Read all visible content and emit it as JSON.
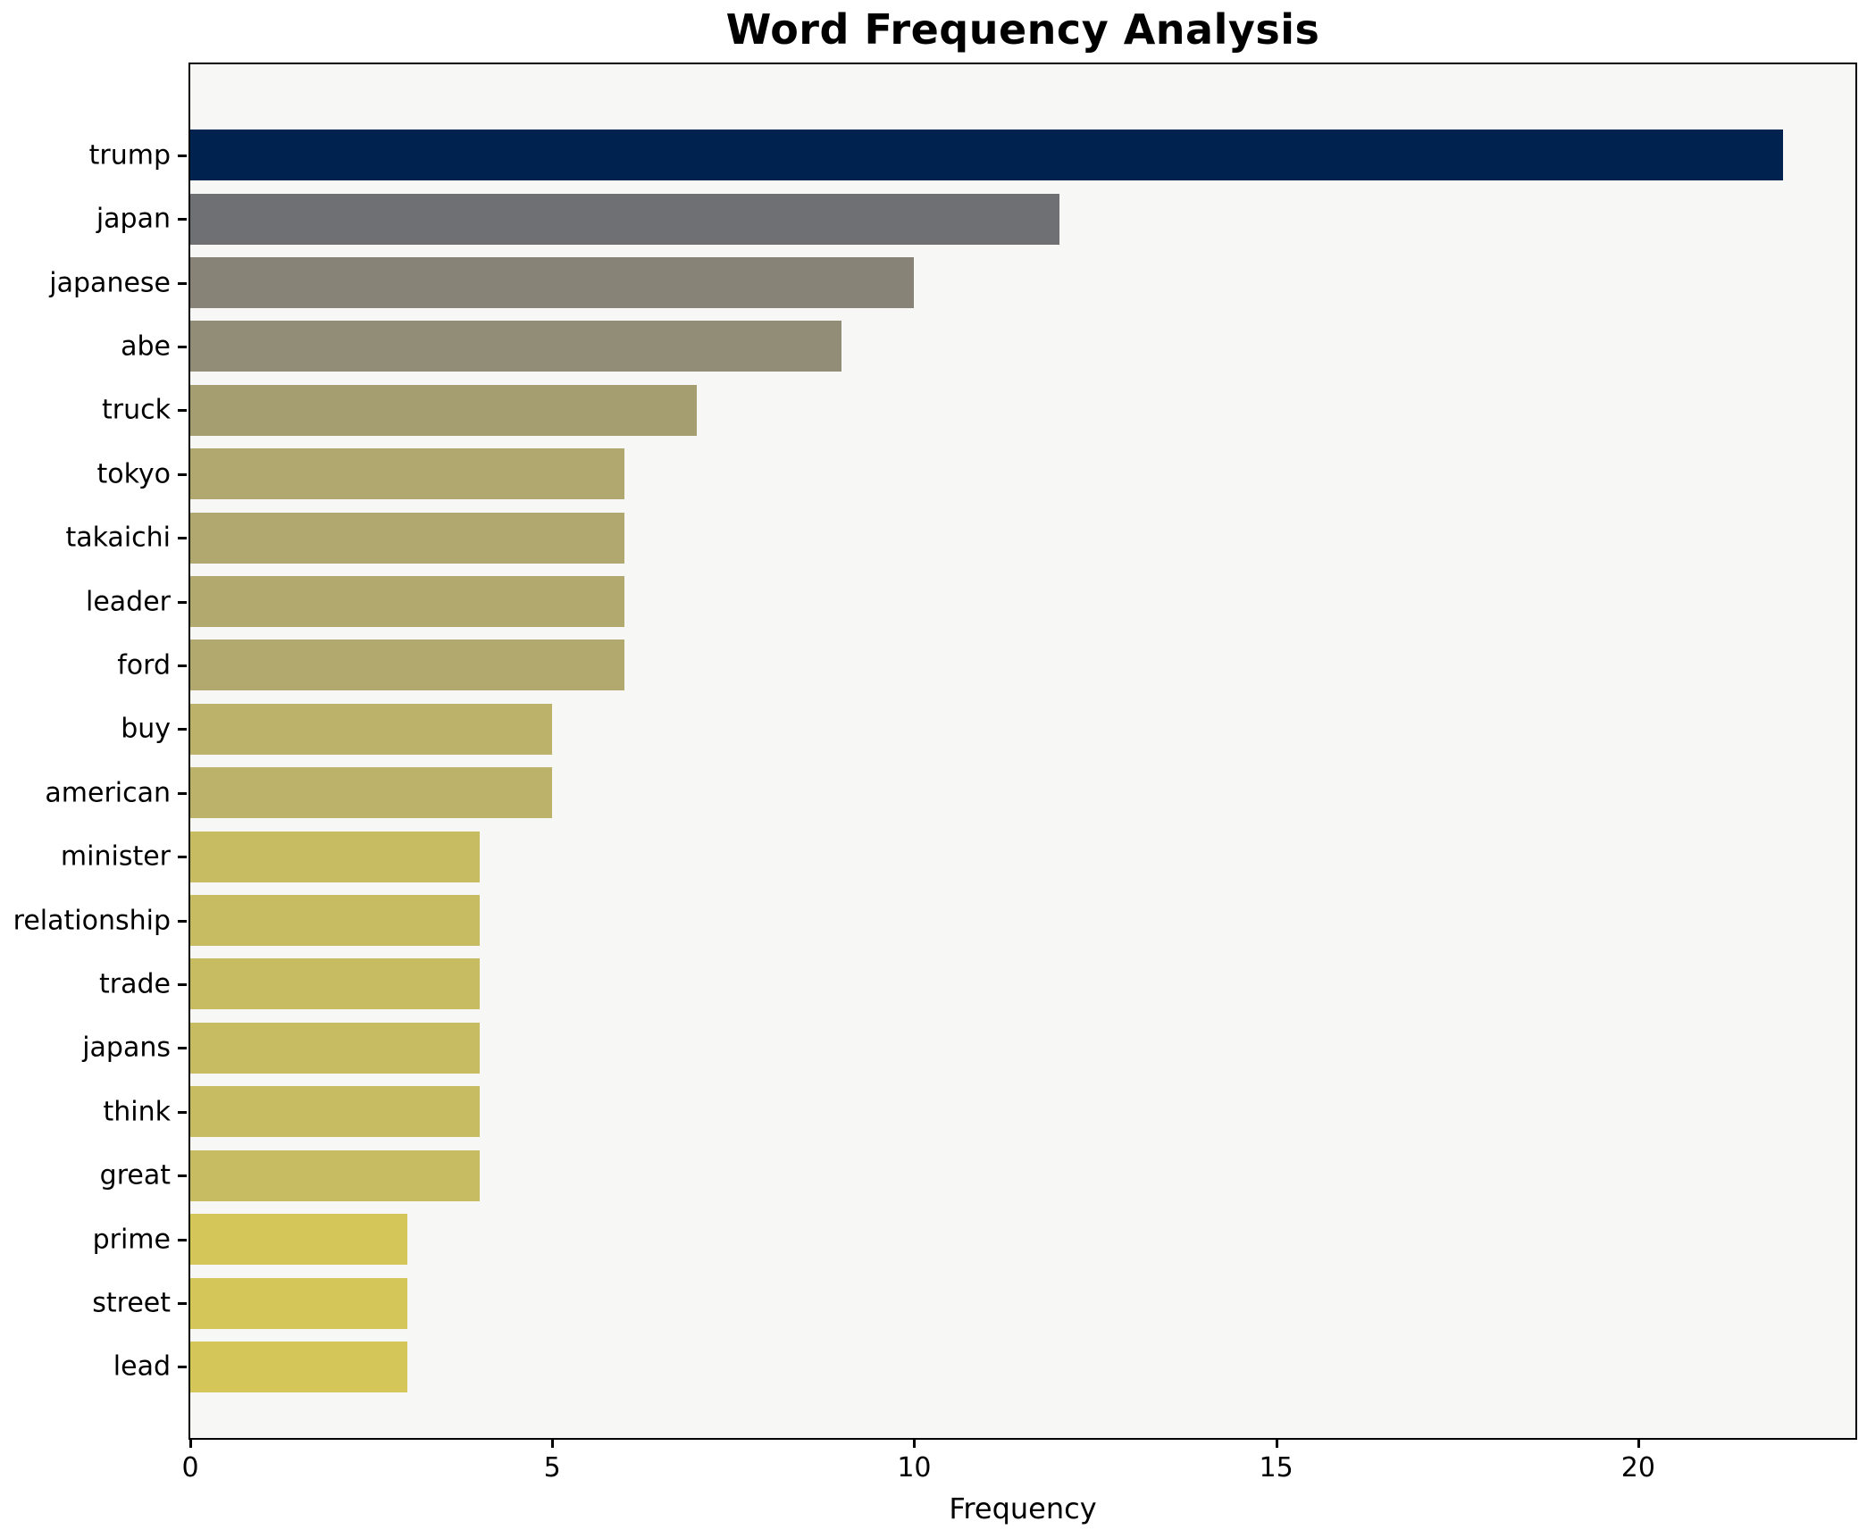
{
  "chart_data": {
    "type": "bar",
    "orientation": "horizontal",
    "title": "Word Frequency Analysis",
    "xlabel": "Frequency",
    "ylabel": "",
    "categories": [
      "trump",
      "japan",
      "japanese",
      "abe",
      "truck",
      "tokyo",
      "takaichi",
      "leader",
      "ford",
      "buy",
      "american",
      "minister",
      "relationship",
      "trade",
      "japans",
      "think",
      "great",
      "prime",
      "street",
      "lead"
    ],
    "values": [
      22,
      12,
      10,
      9,
      7,
      6,
      6,
      6,
      6,
      5,
      5,
      4,
      4,
      4,
      4,
      4,
      4,
      3,
      3,
      3
    ],
    "bar_colors": [
      "#00224e",
      "#6f7073",
      "#878377",
      "#928d77",
      "#a59e71",
      "#b0a86e",
      "#b0a86e",
      "#b1a96e",
      "#b1a96e",
      "#bcb269",
      "#bcb269",
      "#c8bc62",
      "#c8bc62",
      "#c8bc62",
      "#c8bc62",
      "#c8bc62",
      "#c8bc62",
      "#d4c659",
      "#d4c659",
      "#d4c659"
    ],
    "xlim": [
      0,
      23
    ],
    "xticks": [
      0,
      5,
      10,
      15,
      20
    ],
    "grid": false,
    "legend": false,
    "plot_background": "#f7f7f5",
    "figure_background": "#ffffff",
    "bar_height_fraction": 0.8
  }
}
